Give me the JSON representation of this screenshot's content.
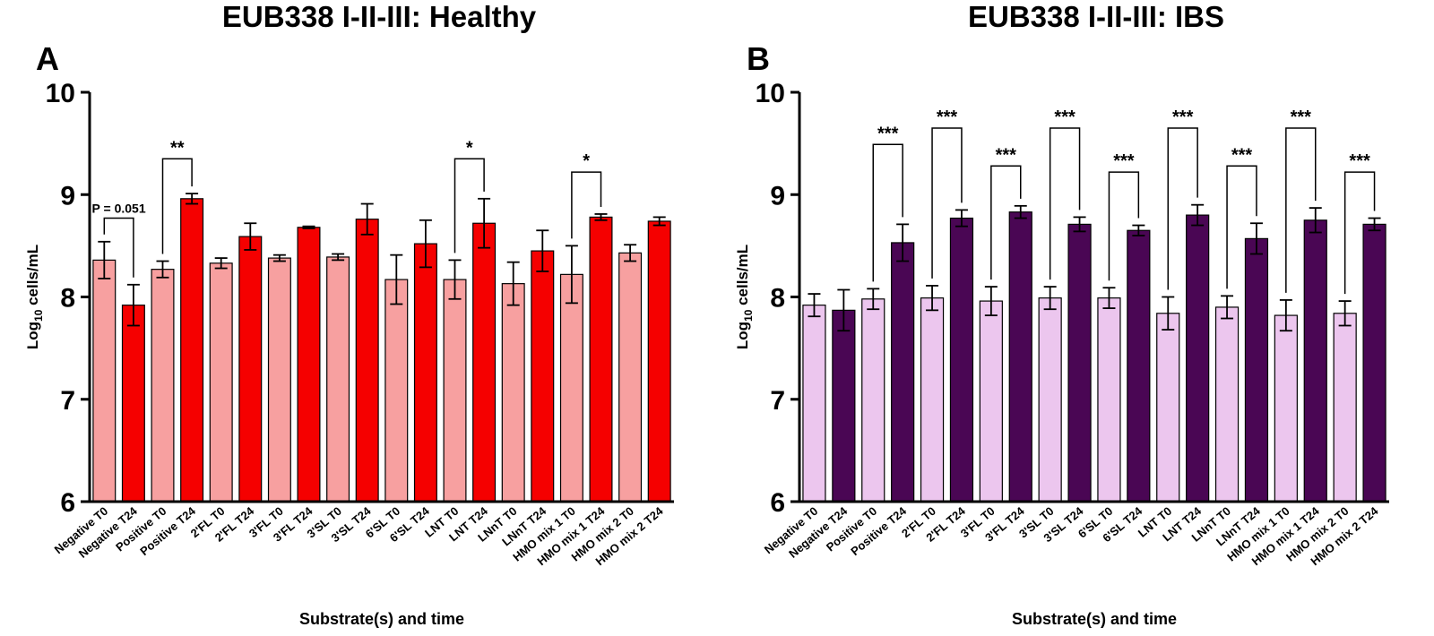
{
  "chart_data": [
    {
      "type": "bar",
      "panel": "A",
      "title": "EUB338 I-II-III: Healthy",
      "ylabel_main": "Log",
      "ylabel_sub": "10",
      "ylabel_rest": " cells/mL",
      "xlabel": "Substrate(s) and time",
      "ylim": [
        6,
        10
      ],
      "yticks": [
        "6",
        "7",
        "8",
        "9",
        "10"
      ],
      "ytick_values": [
        6,
        7,
        8,
        9,
        10
      ],
      "categories": [
        "Negative T0",
        "Negative T24",
        "Positive T0",
        "Positive T24",
        "2'FL T0",
        "2'FL T24",
        "3'FL T0",
        "3'FL T24",
        "3'SL T0",
        "3'SL T24",
        "6'SL T0",
        "6'SL T24",
        "LNT T0",
        "LNT T24",
        "LNnT T0",
        "LNnT T24",
        "HMO mix 1 T0",
        "HMO mix 1 T24",
        "HMO mix 2 T0",
        "HMO mix 2 T24"
      ],
      "values": [
        8.36,
        7.92,
        8.27,
        8.96,
        8.33,
        8.59,
        8.38,
        8.68,
        8.39,
        8.76,
        8.17,
        8.52,
        8.17,
        8.72,
        8.13,
        8.45,
        8.22,
        8.78,
        8.43,
        8.74
      ],
      "errors": [
        0.18,
        0.2,
        0.08,
        0.05,
        0.05,
        0.13,
        0.03,
        0.01,
        0.03,
        0.15,
        0.24,
        0.23,
        0.19,
        0.24,
        0.21,
        0.2,
        0.28,
        0.03,
        0.08,
        0.04
      ],
      "colors": {
        "t0": "#f7a0a0",
        "t24": "#f50000"
      },
      "brackets": [
        {
          "from": 0,
          "to": 1,
          "label": "P = 0.051",
          "y": 8.77
        },
        {
          "from": 2,
          "to": 3,
          "label": "**",
          "y": 9.35
        },
        {
          "from": 12,
          "to": 13,
          "label": "*",
          "y": 9.35
        },
        {
          "from": 16,
          "to": 17,
          "label": "*",
          "y": 9.22
        }
      ]
    },
    {
      "type": "bar",
      "panel": "B",
      "title": "EUB338 I-II-III: IBS",
      "ylabel_main": "Log",
      "ylabel_sub": "10",
      "ylabel_rest": " cells/mL",
      "xlabel": "Substrate(s) and time",
      "ylim": [
        6,
        10
      ],
      "yticks": [
        "6",
        "7",
        "8",
        "9",
        "10"
      ],
      "ytick_values": [
        6,
        7,
        8,
        9,
        10
      ],
      "categories": [
        "Negative T0",
        "Negative T24",
        "Positive T0",
        "Positive T24",
        "2'FL T0",
        "2'FL T24",
        "3'FL T0",
        "3'FL T24",
        "3'SL T0",
        "3'SL T24",
        "6'SL T0",
        "6'SL T24",
        "LNT T0",
        "LNT T24",
        "LNnT T0",
        "LNnT T24",
        "HMO mix 1 T0",
        "HMO mix 1 T24",
        "HMO mix 2 T0",
        "HMO mix 2 T24"
      ],
      "values": [
        7.92,
        7.87,
        7.98,
        8.53,
        7.99,
        8.77,
        7.96,
        8.83,
        7.99,
        8.71,
        7.99,
        8.65,
        7.84,
        8.8,
        7.9,
        8.57,
        7.82,
        8.75,
        7.84,
        8.71
      ],
      "errors": [
        0.11,
        0.2,
        0.1,
        0.18,
        0.12,
        0.08,
        0.14,
        0.06,
        0.11,
        0.07,
        0.1,
        0.05,
        0.16,
        0.1,
        0.11,
        0.15,
        0.15,
        0.12,
        0.12,
        0.06
      ],
      "colors": {
        "t0": "#ecc6ee",
        "t24": "#4a0654"
      },
      "brackets": [
        {
          "from": 2,
          "to": 3,
          "label": "***",
          "y": 9.49
        },
        {
          "from": 4,
          "to": 5,
          "label": "***",
          "y": 9.65
        },
        {
          "from": 6,
          "to": 7,
          "label": "***",
          "y": 9.28
        },
        {
          "from": 8,
          "to": 9,
          "label": "***",
          "y": 9.65
        },
        {
          "from": 10,
          "to": 11,
          "label": "***",
          "y": 9.22
        },
        {
          "from": 12,
          "to": 13,
          "label": "***",
          "y": 9.65
        },
        {
          "from": 14,
          "to": 15,
          "label": "***",
          "y": 9.28
        },
        {
          "from": 16,
          "to": 17,
          "label": "***",
          "y": 9.65
        },
        {
          "from": 18,
          "to": 19,
          "label": "***",
          "y": 9.22
        }
      ]
    }
  ]
}
